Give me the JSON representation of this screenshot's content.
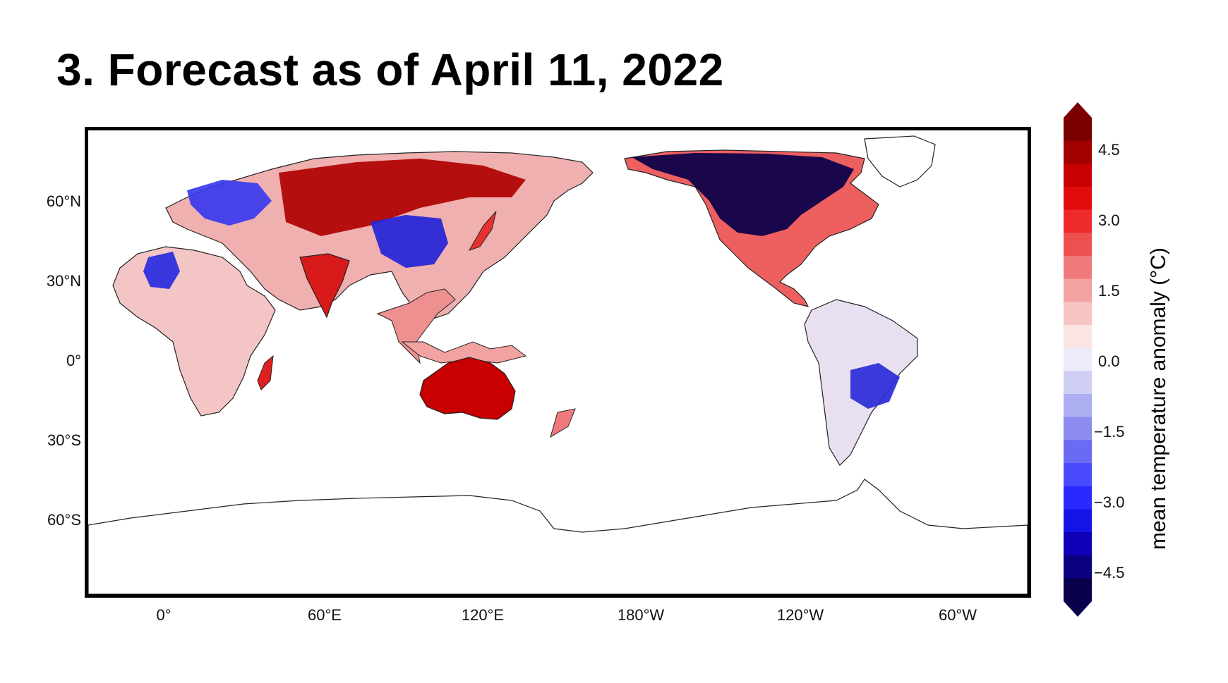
{
  "title": "3. Forecast as of April 11, 2022",
  "map": {
    "lat_labels": [
      "60°N",
      "30°N",
      "0°",
      "30°S",
      "60°S"
    ],
    "lon_labels": [
      "0°",
      "60°E",
      "120°E",
      "180°W",
      "120°W",
      "60°W"
    ],
    "projection": "PlateCarree centered on 150°E",
    "land_base_color": "#f2c9c9"
  },
  "colorbar": {
    "label": "mean temperature anomaly (°C)",
    "ticks": [
      "4.5",
      "3.0",
      "1.5",
      "0.0",
      "−1.5",
      "−3.0",
      "−4.5"
    ],
    "range": [
      -5.25,
      5.25
    ],
    "extend": "both",
    "colors": [
      "#08004a",
      "#0a0080",
      "#0f00b8",
      "#1414e6",
      "#2a2aff",
      "#4a4aff",
      "#6a6af5",
      "#8c8cf0",
      "#aeaef2",
      "#cfcff6",
      "#ebebfa",
      "#fbe4e4",
      "#f7c4c4",
      "#f3a2a2",
      "#f07a7a",
      "#ee5050",
      "#ef2a2a",
      "#e30c0c",
      "#c80000",
      "#a30000",
      "#7a0000"
    ]
  },
  "regions": [
    {
      "name": "siberia",
      "color": "#b00000"
    },
    {
      "name": "north-america-north",
      "color": "#08004a"
    },
    {
      "name": "europe",
      "color": "#3a3aee"
    },
    {
      "name": "china",
      "color": "#2424d8"
    },
    {
      "name": "australia",
      "color": "#c80000"
    },
    {
      "name": "sahara-west",
      "color": "#2a2ae0"
    },
    {
      "name": "argentina",
      "color": "#2a2ad8"
    }
  ]
}
